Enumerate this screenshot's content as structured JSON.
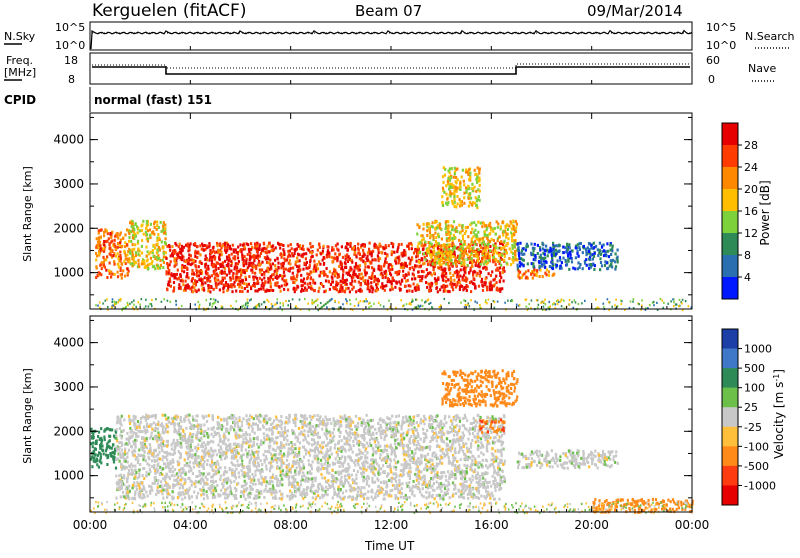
{
  "header": {
    "station": "Kerguelen (fitACF)",
    "beam": "Beam 07",
    "date": "09/Mar/2014"
  },
  "noise_panel": {
    "left_label": "N.Sky",
    "right_label": "N.Search",
    "left_ticks": [
      "10^5",
      "10^0"
    ],
    "right_ticks": [
      "10^5",
      "10^0"
    ]
  },
  "freq_panel": {
    "left_label_1": "Freq.",
    "left_label_2": "[MHz]",
    "right_label": "Nave",
    "left_ticks": [
      "18",
      "8"
    ],
    "right_ticks": [
      "60",
      "0"
    ]
  },
  "cpid_panel": {
    "label": "CPID",
    "mode": "normal (fast) 151"
  },
  "time_axis": {
    "title": "Time UT",
    "ticks": [
      "00:00",
      "04:00",
      "08:00",
      "12:00",
      "16:00",
      "20:00",
      "00:00"
    ]
  },
  "power_colorbar": {
    "label": "Power [dB]",
    "ticks": [
      "28",
      "24",
      "20",
      "16",
      "12",
      "8",
      "4"
    ],
    "colors": [
      "#e60000",
      "#ff3b00",
      "#ff8800",
      "#ffbf00",
      "#7dd23c",
      "#2e8b57",
      "#2a6fb0",
      "#0018ff"
    ]
  },
  "velocity_colorbar": {
    "label": "Velocity [m s^-1]",
    "ticks": [
      "1000",
      "500",
      "100",
      "25",
      "-25",
      "-100",
      "-500",
      "-1000"
    ],
    "colors": [
      "#1b3fa6",
      "#3f78c8",
      "#2e8b57",
      "#6cc04a",
      "#c8c8c8",
      "#ffbf3a",
      "#ff8a1a",
      "#ff3b12",
      "#e60000"
    ]
  },
  "chart_data": [
    {
      "type": "heatmap",
      "title": "Power",
      "xlabel": "Time UT",
      "ylabel": "Slant Range [km]",
      "ylim": [
        180,
        4600
      ],
      "yticks": [
        1000,
        2000,
        3000,
        4000
      ],
      "xlim_hours": [
        0,
        24
      ],
      "colorbar": "Power [dB]",
      "zlim": [
        0,
        32
      ],
      "regions": [
        {
          "t0": 0.2,
          "t1": 1.5,
          "r0": 900,
          "r1": 2000,
          "value": 24
        },
        {
          "t0": 1.5,
          "t1": 3.0,
          "r0": 1100,
          "r1": 2200,
          "value": 18
        },
        {
          "t0": 3.0,
          "t1": 16.5,
          "r0": 600,
          "r1": 1700,
          "value": 28
        },
        {
          "t0": 13.0,
          "t1": 17.0,
          "r0": 1200,
          "r1": 2200,
          "value": 18
        },
        {
          "t0": 14.0,
          "t1": 15.5,
          "r0": 2500,
          "r1": 3400,
          "value": 18
        },
        {
          "t0": 17.0,
          "t1": 21.0,
          "r0": 1100,
          "r1": 1700,
          "value": 6
        },
        {
          "t0": 17.0,
          "t1": 18.5,
          "r0": 900,
          "r1": 1100,
          "value": 22
        }
      ]
    },
    {
      "type": "heatmap",
      "title": "Velocity",
      "xlabel": "Time UT",
      "ylabel": "Slant Range [km]",
      "ylim": [
        180,
        4600
      ],
      "yticks": [
        1000,
        2000,
        3000,
        4000
      ],
      "xlim_hours": [
        0,
        24
      ],
      "colorbar": "Velocity [m s^-1]",
      "regions": [
        {
          "t0": 0.0,
          "t1": 1.0,
          "r0": 1200,
          "r1": 2100,
          "value": 150
        },
        {
          "t0": 1.0,
          "t1": 16.5,
          "r0": 500,
          "r1": 2400,
          "value": 0
        },
        {
          "t0": 14.0,
          "t1": 17.0,
          "r0": 2600,
          "r1": 3400,
          "value": -300
        },
        {
          "t0": 15.5,
          "t1": 16.5,
          "r0": 2000,
          "r1": 2300,
          "value": -500
        },
        {
          "t0": 17.0,
          "t1": 21.0,
          "r0": 1200,
          "r1": 1600,
          "value": 0
        },
        {
          "t0": 20.0,
          "t1": 24.0,
          "r0": 200,
          "r1": 500,
          "value": -150
        }
      ]
    }
  ]
}
